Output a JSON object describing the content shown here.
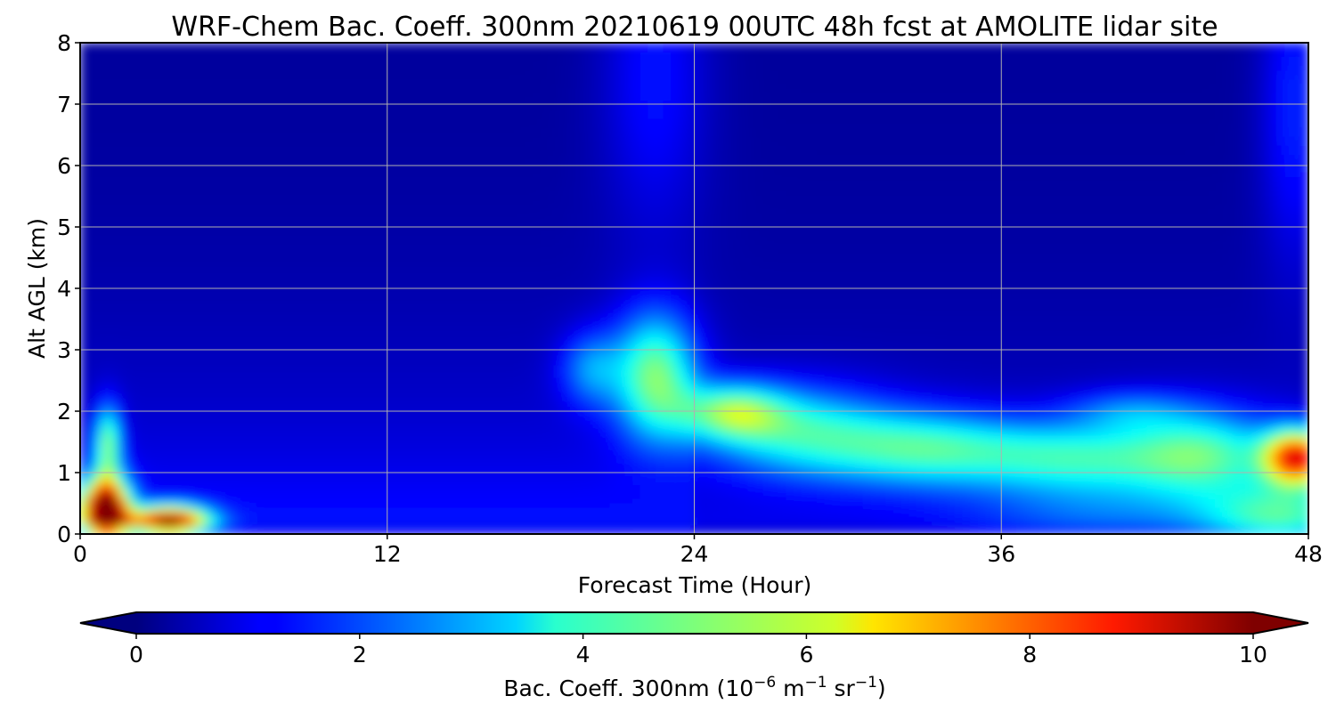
{
  "chart_data": {
    "type": "heatmap",
    "title": "WRF-Chem Bac. Coeff. 300nm  20210619 00UTC 48h fcst at AMOLITE lidar site",
    "xlabel": "Forecast Time (Hour)",
    "ylabel": "Alt AGL (km)",
    "xlim": [
      0,
      48
    ],
    "ylim": [
      0,
      8
    ],
    "xticks": [
      "0",
      "12",
      "24",
      "36",
      "48"
    ],
    "yticks": [
      "0",
      "1",
      "2",
      "3",
      "4",
      "5",
      "6",
      "7",
      "8"
    ],
    "grid": true,
    "colormap": "jet",
    "colorbar": {
      "label_main": "Bac. Coeff. 300nm  (10",
      "exp1": "−6",
      "label_mid": " m",
      "exp2": "−1",
      "label_mid2": " sr",
      "exp3": "−1",
      "label_end": ")",
      "range": [
        0,
        10
      ],
      "ticks": [
        "0",
        "2",
        "4",
        "6",
        "8",
        "10"
      ],
      "extend": "both",
      "under_color": "#00007f",
      "over_color": "#7f0000"
    },
    "x_hours": [
      0,
      1,
      2,
      3,
      4,
      5,
      6,
      8,
      10,
      12,
      14,
      16,
      18,
      20,
      21,
      22,
      23,
      24,
      25,
      26,
      27,
      28,
      30,
      32,
      34,
      36,
      38,
      40,
      42,
      44,
      46,
      47,
      48
    ],
    "y_km": [
      0,
      0.1,
      0.2,
      0.4,
      0.6,
      0.8,
      1.0,
      1.2,
      1.4,
      1.6,
      1.8,
      2.0,
      2.2,
      2.4,
      2.6,
      2.8,
      3.0,
      3.3,
      3.6,
      4.0,
      4.5,
      5.0,
      5.5,
      6.0,
      6.5,
      7.0,
      7.5,
      8.0
    ]
  }
}
